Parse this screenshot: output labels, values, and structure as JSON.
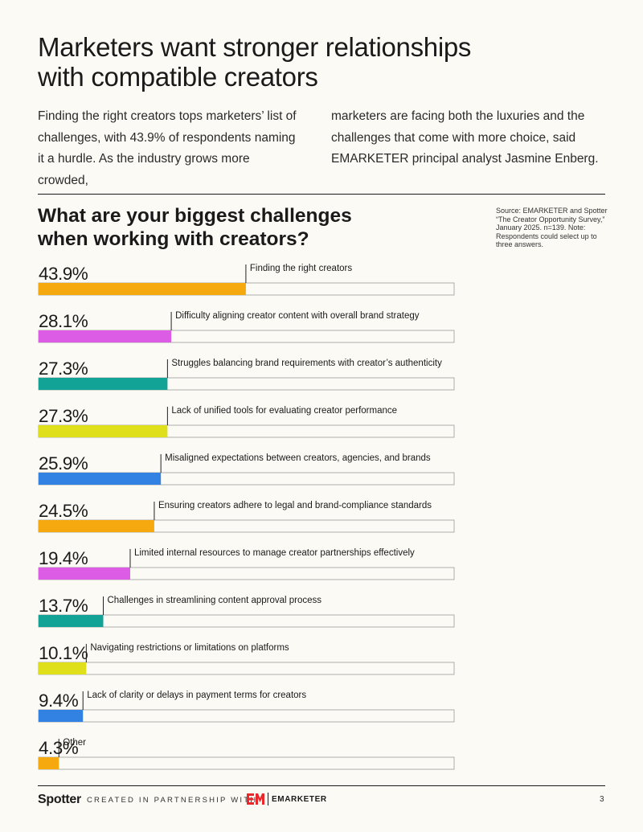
{
  "title": "Marketers want stronger relationships\nwith compatible creators",
  "intro_left": "Finding the right creators tops marketers’ list of challenges, with 43.9% of respondents naming it a hurdle. As the industry grows more crowded,",
  "intro_right": "marketers are facing both the luxuries and the challenges that come with more choice, said EMARKETER principal analyst Jasmine Enberg.",
  "chart_title": "What are your biggest challenges\nwhen working with creators?",
  "source": "Source: EMARKETER and Spotter “The Creator Opportunity Survey,” January 2025. n=139. Note: Respondents could select up to three answers.",
  "chart_data": {
    "type": "bar",
    "orientation": "horizontal",
    "xlim": [
      0,
      100
    ],
    "categories": [
      "Finding the right creators",
      "Difficulty aligning creator content with overall brand strategy",
      "Struggles balancing brand requirements with creator’s authenticity",
      "Lack of unified tools for evaluating creator performance",
      "Misaligned expectations between creators, agencies, and brands",
      "Ensuring creators adhere to legal and brand-compliance standards",
      "Limited internal resources to manage creator partnerships effectively",
      "Challenges in streamlining content approval process",
      "Navigating restrictions or limitations on platforms",
      "Lack of clarity or delays in payment terms for creators",
      "Other"
    ],
    "values": [
      43.9,
      28.1,
      27.3,
      27.3,
      25.9,
      24.5,
      19.4,
      13.7,
      10.1,
      9.4,
      4.3
    ],
    "value_labels": [
      "43.9%",
      "28.1%",
      "27.3%",
      "27.3%",
      "25.9%",
      "24.5%",
      "19.4%",
      "13.7%",
      "10.1%",
      "9.4%",
      "4.3%"
    ],
    "colors": [
      "#f6a90f",
      "#dc5ce6",
      "#12a296",
      "#dfe01b",
      "#3182e3",
      "#f6a90f",
      "#dc5ce6",
      "#12a296",
      "#dfe01b",
      "#3182e3",
      "#f6a90f"
    ]
  },
  "footer": {
    "brand": "Spotter",
    "partner_text": "CREATED IN PARTNERSHIP WITH",
    "partner_logo_text": "EMARKETER",
    "page_number": "3",
    "logo_color": "#e8282b"
  }
}
